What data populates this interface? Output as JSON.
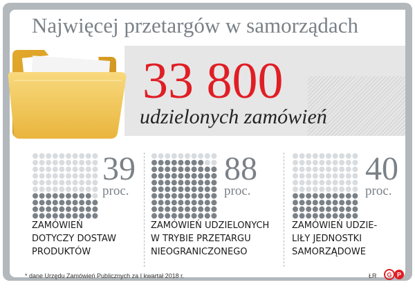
{
  "title": "Najwięcej przetargów w samorządach",
  "headline": {
    "value": "33 800",
    "subtitle": "udzielonych zamówień"
  },
  "stats": [
    {
      "value": "39",
      "unit": "proc.",
      "percent": 39,
      "label_lines": [
        "ZAMÓWIEŃ",
        "DOTYCZY DOSTAW",
        "PRODUKTÓW"
      ]
    },
    {
      "value": "88",
      "unit": "proc.",
      "percent": 88,
      "label_lines": [
        "ZAMÓWIEŃ UDZIELONYCH",
        "W TRYBIE PRZETARGU",
        "NIEOGRANICZONEGO"
      ]
    },
    {
      "value": "40",
      "unit": "proc.",
      "percent": 40,
      "label_lines": [
        "ZAMÓWIEŃ UDZIE-",
        "LIŁY JEDNOSTKI",
        "SAMORZĄDOWE"
      ]
    }
  ],
  "footnote": "* dane Urzędu Zamówień Publicznych za I kwartał 2018 r.",
  "credit": "ŁR",
  "logo_text": "GP",
  "colors": {
    "accent": "#e01e25",
    "dot_filled": "#7a8187",
    "dot_empty": "#d9dcdf",
    "frame": "#b3b8bc",
    "folder": "#f3c85a"
  },
  "icons": [
    "folder-icon",
    "publisher-logo-icon"
  ]
}
